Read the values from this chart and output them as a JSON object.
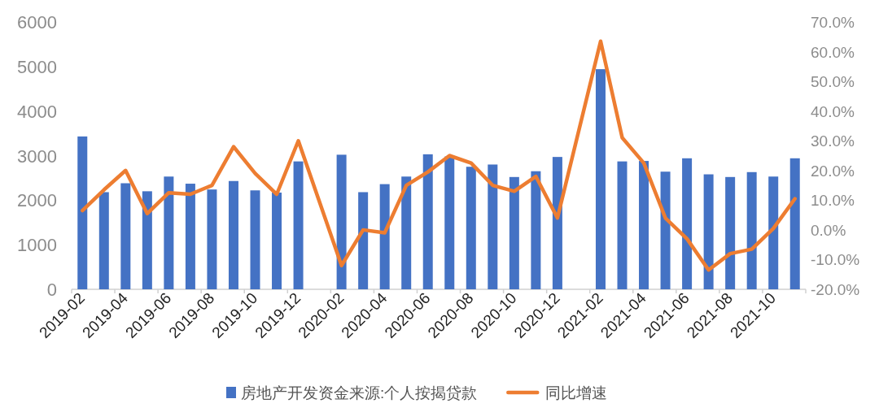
{
  "chart_data": {
    "type": "bar",
    "categories": [
      "2019-02",
      null,
      "2019-04",
      null,
      "2019-06",
      null,
      "2019-08",
      null,
      "2019-10",
      null,
      "2019-12",
      null,
      "2020-02",
      null,
      "2020-04",
      null,
      "2020-06",
      null,
      "2020-08",
      null,
      "2020-10",
      null,
      "2020-12",
      null,
      "2021-02",
      null,
      "2021-04",
      null,
      "2021-06",
      null,
      "2021-08",
      null,
      "2021-10",
      null
    ],
    "series": [
      {
        "name": "房地产开发资金来源:个人按揭贷款",
        "color": "#4472c4",
        "values": [
          3430,
          2180,
          2380,
          2200,
          2530,
          2370,
          2240,
          2430,
          2220,
          2170,
          2870,
          null,
          3020,
          2180,
          2360,
          2530,
          3030,
          2980,
          2750,
          2800,
          2520,
          2650,
          2970,
          null,
          4940,
          2870,
          2880,
          2640,
          2940,
          2580,
          2520,
          2630,
          2530,
          2940
        ]
      },
      {
        "name": "同比增速",
        "type": "line",
        "axis": "y2",
        "color": "#ed7d31",
        "values": [
          6.5,
          13.5,
          20,
          5.5,
          12.5,
          12,
          15,
          28,
          19,
          12,
          30,
          null,
          -12,
          0,
          -1,
          15,
          19.5,
          25,
          22.5,
          15,
          13,
          18,
          4,
          null,
          63.5,
          31,
          22.5,
          4,
          -3,
          -13.5,
          -8,
          -6.5,
          0.5,
          10.5
        ]
      }
    ],
    "ylim": [
      0,
      6000
    ],
    "yticks": [
      0,
      1000,
      2000,
      3000,
      4000,
      5000,
      6000
    ],
    "y2lim": [
      -20,
      70
    ],
    "y2ticks": [
      {
        "value": -20,
        "label": "-20.0%"
      },
      {
        "value": -10,
        "label": "-10.0%"
      },
      {
        "value": 0,
        "label": "0.0%"
      },
      {
        "value": 10,
        "label": "10.0%"
      },
      {
        "value": 20,
        "label": "20.0%"
      },
      {
        "value": 30,
        "label": "30.0%"
      },
      {
        "value": 40,
        "label": "40.0%"
      },
      {
        "value": 50,
        "label": "50.0%"
      },
      {
        "value": 60,
        "label": "60.0%"
      },
      {
        "value": 70,
        "label": "70.0%"
      }
    ],
    "legend": "bottom"
  }
}
